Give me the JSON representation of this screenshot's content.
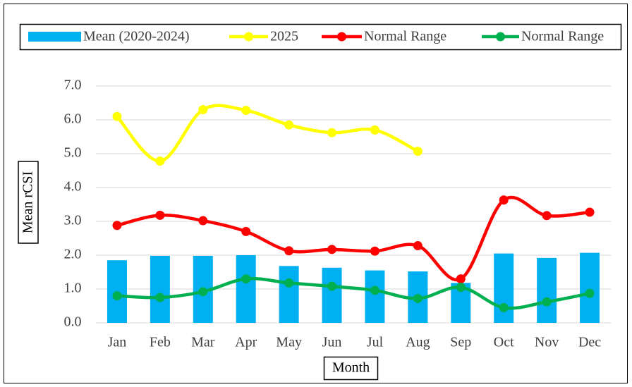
{
  "chart_data": {
    "type": "bar",
    "categories": [
      "Jan",
      "Feb",
      "Mar",
      "Apr",
      "May",
      "Jun",
      "Jul",
      "Aug",
      "Sep",
      "Oct",
      "Nov",
      "Dec"
    ],
    "series": [
      {
        "name": "Mean (2020-2024)",
        "type": "bar",
        "color": "#00b0f0",
        "values": [
          1.85,
          1.98,
          1.98,
          2.0,
          1.68,
          1.63,
          1.55,
          1.52,
          1.18,
          2.05,
          1.92,
          2.07
        ]
      },
      {
        "name": "2025",
        "type": "line",
        "color": "#ffff00",
        "values": [
          6.1,
          4.78,
          6.3,
          6.28,
          5.85,
          5.62,
          5.7,
          5.07,
          null,
          null,
          null,
          null
        ]
      },
      {
        "name": "Normal Range",
        "type": "line",
        "color": "#ff0000",
        "values": [
          2.88,
          3.18,
          3.02,
          2.7,
          2.13,
          2.17,
          2.12,
          2.28,
          1.3,
          3.63,
          3.17,
          3.27
        ]
      },
      {
        "name": "Normal Range",
        "type": "line",
        "color": "#00b050",
        "values": [
          0.8,
          0.75,
          0.92,
          1.3,
          1.18,
          1.08,
          0.96,
          0.72,
          1.05,
          0.45,
          0.62,
          0.87
        ]
      }
    ],
    "ylabel": "Mean rCSI",
    "xlabel": "Month",
    "ylim": [
      0,
      7
    ],
    "yticks": [
      {
        "value": 0,
        "label": "0.0"
      },
      {
        "value": 1,
        "label": "1.0"
      },
      {
        "value": 2,
        "label": "2.0"
      },
      {
        "value": 3,
        "label": "3.0"
      },
      {
        "value": 4,
        "label": "4.0"
      },
      {
        "value": 5,
        "label": "5.0"
      },
      {
        "value": 6,
        "label": "6.0"
      },
      {
        "value": 7,
        "label": "7.0"
      }
    ],
    "grid": true,
    "legend": "top"
  }
}
